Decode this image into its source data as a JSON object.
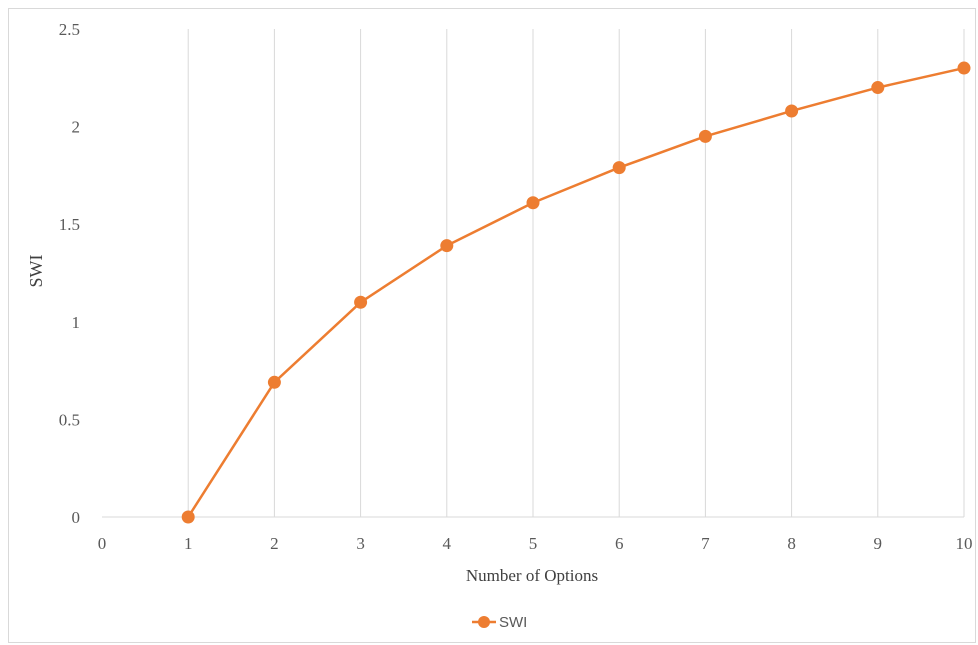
{
  "chart_data": {
    "type": "line",
    "title": "",
    "xlabel": "Number of Options",
    "ylabel": "SWI",
    "xlim": [
      0,
      10
    ],
    "ylim": [
      0,
      2.5
    ],
    "x_ticks": [
      "0",
      "1",
      "2",
      "3",
      "4",
      "5",
      "6",
      "7",
      "8",
      "9",
      "10"
    ],
    "y_ticks": [
      "0",
      "0.5",
      "1",
      "1.5",
      "2",
      "2.5"
    ],
    "grid": "vertical",
    "legend_position": "bottom",
    "series": [
      {
        "name": "SWI",
        "color": "#ED7D31",
        "x": [
          1,
          2,
          3,
          4,
          5,
          6,
          7,
          8,
          9,
          10
        ],
        "y": [
          0,
          0.69,
          1.1,
          1.39,
          1.61,
          1.79,
          1.95,
          2.08,
          2.2,
          2.3
        ]
      }
    ]
  }
}
